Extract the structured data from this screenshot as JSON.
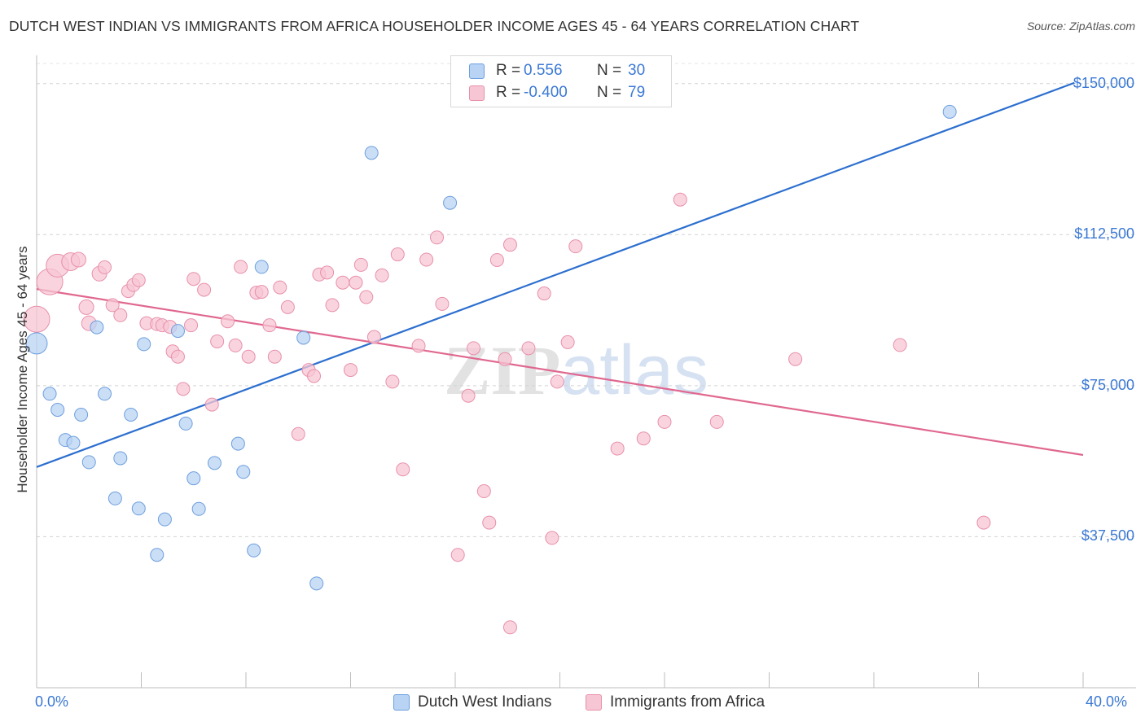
{
  "title": "DUTCH WEST INDIAN VS IMMIGRANTS FROM AFRICA HOUSEHOLDER INCOME AGES 45 - 64 YEARS CORRELATION CHART",
  "source": "Source: ZipAtlas.com",
  "watermark": {
    "zip": "ZIP",
    "atlas": "atlas"
  },
  "legend": {
    "rows": [
      {
        "r_label": "R =",
        "r_value": "0.556",
        "n_label": "N =",
        "n_value": "30"
      },
      {
        "r_label": "R =",
        "r_value": "-0.400",
        "n_label": "N =",
        "n_value": "79"
      }
    ]
  },
  "colors": {
    "blue_fill": "#b8d3f3",
    "blue_stroke": "#6e9fde",
    "blue_line": "#2c6fcf",
    "pink_fill": "#f7c6d4",
    "pink_stroke": "#e890aa",
    "pink_line": "#e0688f",
    "axis_label": "#3a78d4",
    "grid": "#d0d0d0"
  },
  "chart_data": {
    "type": "scatter",
    "title": "DUTCH WEST INDIAN VS IMMIGRANTS FROM AFRICA HOUSEHOLDER INCOME AGES 45 - 64 YEARS CORRELATION CHART",
    "xlabel": "",
    "ylabel": "Householder Income Ages 45 - 64 years",
    "xlim": [
      0,
      40
    ],
    "ylim": [
      0,
      155000
    ],
    "x_tick_labels": [
      "0.0%",
      "40.0%"
    ],
    "y_ticks": [
      37500,
      75000,
      112500,
      150000
    ],
    "y_tick_labels": [
      "$37,500",
      "$75,000",
      "$112,500",
      "$150,000"
    ],
    "grid": true,
    "legend_position": "top-center",
    "series": [
      {
        "name": "Dutch West Indians",
        "color": "#6e9fde",
        "r": 0.556,
        "n": 30,
        "trend": {
          "x": [
            0,
            40
          ],
          "y": [
            54800,
            151000
          ]
        },
        "points": [
          [
            0.0,
            85500,
            13
          ],
          [
            0.5,
            73000,
            8
          ],
          [
            0.8,
            69000,
            8
          ],
          [
            1.1,
            61500,
            8
          ],
          [
            1.4,
            60800,
            8
          ],
          [
            1.7,
            67800,
            8
          ],
          [
            2.0,
            56000,
            8
          ],
          [
            2.3,
            89500,
            8
          ],
          [
            2.6,
            73000,
            8
          ],
          [
            3.0,
            47000,
            8
          ],
          [
            3.2,
            57000,
            8
          ],
          [
            3.6,
            67800,
            8
          ],
          [
            3.9,
            44500,
            8
          ],
          [
            4.1,
            85300,
            8
          ],
          [
            4.6,
            33000,
            8
          ],
          [
            4.9,
            41800,
            8
          ],
          [
            5.4,
            88600,
            8
          ],
          [
            5.7,
            65600,
            8
          ],
          [
            6.0,
            52000,
            8
          ],
          [
            6.2,
            44400,
            8
          ],
          [
            6.8,
            55800,
            8
          ],
          [
            7.7,
            60600,
            8
          ],
          [
            7.9,
            53600,
            8
          ],
          [
            8.3,
            34100,
            8
          ],
          [
            8.6,
            104500,
            8
          ],
          [
            10.2,
            86900,
            8
          ],
          [
            10.7,
            25900,
            8
          ],
          [
            12.8,
            132800,
            8
          ],
          [
            15.8,
            120400,
            8
          ],
          [
            34.9,
            143000,
            8
          ]
        ]
      },
      {
        "name": "Immigrants from Africa",
        "color": "#e890aa",
        "r": -0.4,
        "n": 79,
        "trend": {
          "x": [
            0,
            40
          ],
          "y": [
            99000,
            57800
          ]
        },
        "points": [
          [
            0.0,
            91500,
            16
          ],
          [
            0.5,
            100800,
            16
          ],
          [
            0.8,
            104800,
            14
          ],
          [
            1.3,
            105800,
            11
          ],
          [
            1.6,
            106300,
            9
          ],
          [
            1.9,
            94500,
            9
          ],
          [
            2.0,
            90500,
            9
          ],
          [
            2.4,
            102800,
            9
          ],
          [
            2.6,
            104400,
            8
          ],
          [
            2.9,
            95000,
            8
          ],
          [
            3.2,
            92500,
            8
          ],
          [
            3.5,
            98500,
            8
          ],
          [
            3.7,
            100000,
            8
          ],
          [
            3.9,
            101200,
            8
          ],
          [
            4.2,
            90500,
            8
          ],
          [
            4.6,
            90300,
            8
          ],
          [
            4.8,
            90000,
            8
          ],
          [
            5.1,
            89600,
            8
          ],
          [
            5.2,
            83500,
            8
          ],
          [
            5.4,
            82200,
            8
          ],
          [
            5.6,
            74200,
            8
          ],
          [
            5.9,
            90000,
            8
          ],
          [
            6.0,
            101500,
            8
          ],
          [
            6.4,
            98800,
            8
          ],
          [
            6.7,
            70300,
            8
          ],
          [
            6.9,
            86000,
            8
          ],
          [
            7.3,
            91000,
            8
          ],
          [
            7.6,
            85000,
            8
          ],
          [
            7.8,
            104500,
            8
          ],
          [
            8.1,
            82200,
            8
          ],
          [
            8.4,
            98100,
            8
          ],
          [
            8.6,
            98300,
            8
          ],
          [
            8.9,
            90000,
            8
          ],
          [
            9.1,
            82200,
            8
          ],
          [
            9.3,
            99400,
            8
          ],
          [
            9.6,
            94500,
            8
          ],
          [
            10.0,
            63000,
            8
          ],
          [
            10.4,
            78900,
            8
          ],
          [
            10.6,
            77400,
            8
          ],
          [
            10.8,
            102600,
            8
          ],
          [
            11.1,
            103100,
            8
          ],
          [
            11.3,
            95000,
            8
          ],
          [
            11.7,
            100600,
            8
          ],
          [
            12.0,
            78900,
            8
          ],
          [
            12.2,
            100600,
            8
          ],
          [
            12.4,
            105000,
            8
          ],
          [
            12.6,
            97000,
            8
          ],
          [
            12.9,
            87100,
            8
          ],
          [
            13.2,
            102400,
            8
          ],
          [
            13.6,
            76000,
            8
          ],
          [
            13.8,
            107600,
            8
          ],
          [
            14.0,
            54200,
            8
          ],
          [
            14.6,
            84900,
            8
          ],
          [
            14.9,
            106300,
            8
          ],
          [
            15.3,
            111800,
            8
          ],
          [
            15.5,
            95300,
            8
          ],
          [
            16.1,
            33000,
            8
          ],
          [
            16.5,
            72500,
            8
          ],
          [
            16.7,
            84300,
            8
          ],
          [
            17.1,
            48800,
            8
          ],
          [
            17.3,
            41000,
            8
          ],
          [
            17.6,
            106200,
            8
          ],
          [
            17.9,
            81600,
            8
          ],
          [
            18.1,
            110000,
            8
          ],
          [
            18.1,
            15000,
            8
          ],
          [
            18.8,
            84300,
            8
          ],
          [
            19.4,
            97900,
            8
          ],
          [
            19.7,
            37200,
            8
          ],
          [
            19.9,
            76000,
            8
          ],
          [
            20.3,
            85800,
            8
          ],
          [
            20.6,
            109600,
            8
          ],
          [
            22.2,
            59400,
            8
          ],
          [
            23.2,
            61900,
            8
          ],
          [
            24.0,
            66000,
            8
          ],
          [
            24.6,
            121200,
            8
          ],
          [
            26.0,
            66000,
            8
          ],
          [
            29.0,
            81600,
            8
          ],
          [
            33.0,
            85100,
            8
          ],
          [
            36.2,
            41000,
            8
          ]
        ]
      }
    ]
  }
}
